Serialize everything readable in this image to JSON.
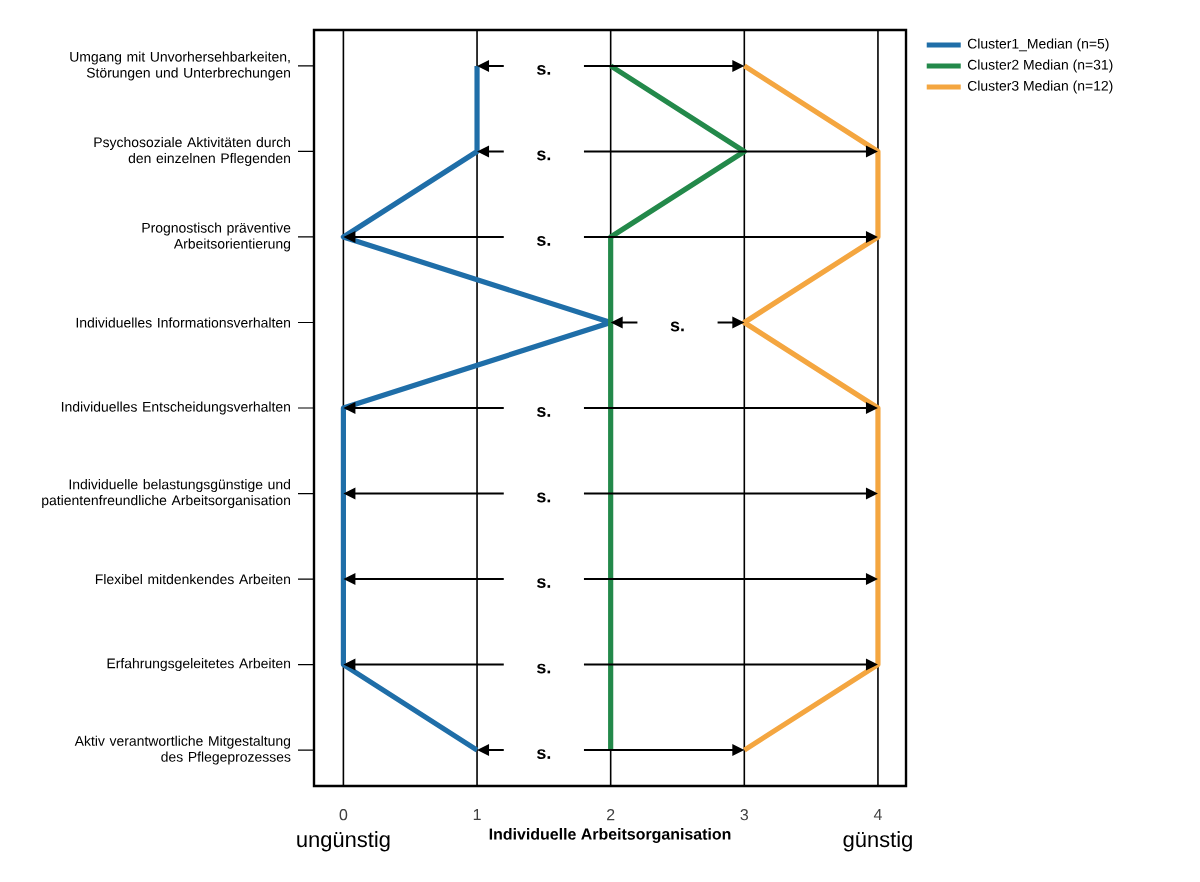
{
  "chart_data": {
    "type": "line",
    "orientation": "horizontal",
    "xlabel": "Individuelle Arbeitsorganisation",
    "categories": [
      "Umgang mit Unvorhersehbarkeiten, Störungen und Unterbrechungen",
      "Psychosoziale Aktivitäten durch den einzelnen Pflegenden",
      "Prognostisch präventive Arbeitsorientierung",
      "Individuelles Informationsverhalten",
      "Individuelles Entscheidungsverhalten",
      "Individuelle belastungsgünstige und patientenfreundliche Arbeitsorganisation",
      "Flexibel mitdenkendes Arbeiten",
      "Erfahrungsgeleitetes Arbeiten",
      "Aktiv verantwortliche Mitgestaltung des Pflegeprozesses"
    ],
    "series": [
      {
        "name": "Cluster1_Median (n=5)",
        "color": "#1f6ea8",
        "values": [
          1,
          1,
          0,
          2,
          0,
          0,
          0,
          0,
          1
        ]
      },
      {
        "name": "Cluster2 Median (n=31)",
        "color": "#23894a",
        "values": [
          2,
          3,
          2,
          2,
          2,
          2,
          2,
          2,
          2
        ]
      },
      {
        "name": "Cluster3 Median (n=12)",
        "color": "#f4a640",
        "values": [
          3,
          4,
          4,
          3,
          4,
          4,
          4,
          4,
          3
        ]
      }
    ],
    "xlim": [
      -0.22,
      4.21
    ],
    "xticks": [
      0,
      1,
      2,
      3,
      4
    ],
    "grid": "x",
    "legend": "top right",
    "line_style": "solid",
    "marker": "none",
    "annotations": [
      "s.",
      "s.",
      "s.",
      "s.",
      "s.",
      "s.",
      "s.",
      "s.",
      "s.",
      "ungünstig",
      "günstig"
    ]
  }
}
